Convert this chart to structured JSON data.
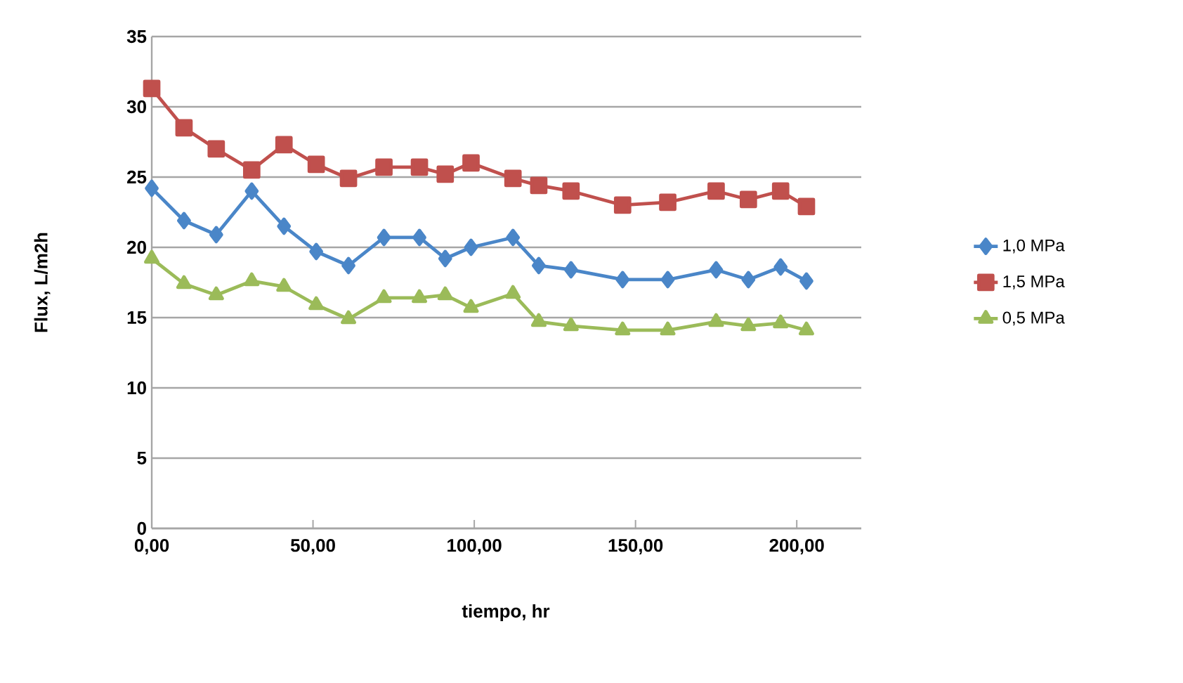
{
  "chart_data": {
    "type": "line",
    "xlabel": "tiempo, hr",
    "ylabel": "Flux, L/m2h",
    "x": [
      0,
      10,
      20,
      31,
      41,
      51,
      61,
      72,
      83,
      91,
      99,
      112,
      120,
      130,
      146,
      160,
      175,
      185,
      195,
      203
    ],
    "series": [
      {
        "name": "1,0 MPa",
        "color": "#4a86c8",
        "marker": "diamond",
        "values": [
          24.2,
          21.9,
          20.9,
          24.0,
          21.5,
          19.7,
          18.7,
          20.7,
          20.7,
          19.2,
          20.0,
          20.7,
          18.7,
          18.4,
          17.7,
          17.7,
          18.4,
          17.7,
          18.6,
          17.6
        ]
      },
      {
        "name": "1,5 MPa",
        "color": "#c0504d",
        "marker": "square",
        "values": [
          31.3,
          28.5,
          27.0,
          25.5,
          27.3,
          25.9,
          24.9,
          25.7,
          25.7,
          25.2,
          26.0,
          24.9,
          24.4,
          24.0,
          23.0,
          23.2,
          24.0,
          23.4,
          24.0,
          22.9
        ]
      },
      {
        "name": "0,5 MPa",
        "color": "#9bbb59",
        "marker": "triangle",
        "values": [
          19.2,
          17.4,
          16.6,
          17.6,
          17.2,
          15.9,
          14.9,
          16.4,
          16.4,
          16.6,
          15.7,
          16.7,
          14.7,
          14.4,
          14.1,
          14.1,
          14.7,
          14.4,
          14.6,
          14.1
        ]
      }
    ],
    "xlim": [
      0,
      220
    ],
    "ylim": [
      0,
      35
    ],
    "xticks": [
      {
        "value": 0,
        "label": "0,00"
      },
      {
        "value": 50,
        "label": "50,00"
      },
      {
        "value": 100,
        "label": "100,00"
      },
      {
        "value": 150,
        "label": "150,00"
      },
      {
        "value": 200,
        "label": "200,00"
      }
    ],
    "yticks": [
      0,
      5,
      10,
      15,
      20,
      25,
      30,
      35
    ],
    "grid": "y",
    "legend": "right"
  }
}
